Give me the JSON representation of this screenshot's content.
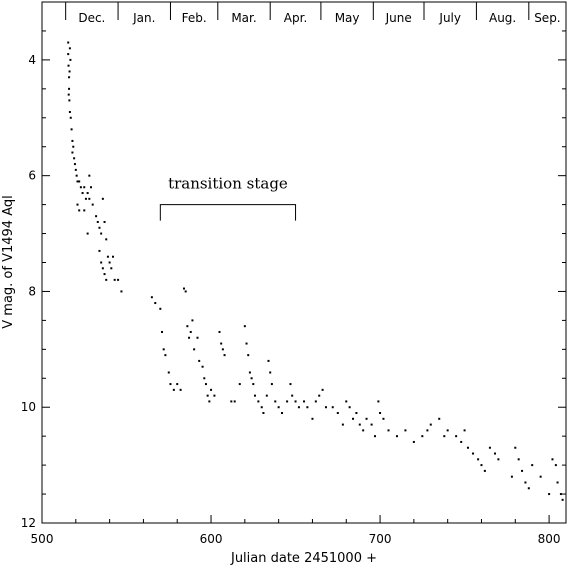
{
  "chart_data": {
    "type": "scatter",
    "title": "",
    "xlabel": "Julian date 2451000 +",
    "ylabel": "V mag. of V1494 Aql",
    "xlim": [
      500,
      810
    ],
    "ylim": [
      12,
      3
    ],
    "y_inverted": true,
    "grid": false,
    "x_ticks": [
      500,
      600,
      700,
      800
    ],
    "y_ticks": [
      4,
      6,
      8,
      10,
      12
    ],
    "months": [
      {
        "label": "Dec.",
        "start": 514,
        "end": 545
      },
      {
        "label": "Jan.",
        "start": 545,
        "end": 576
      },
      {
        "label": "Feb.",
        "start": 576,
        "end": 604
      },
      {
        "label": "Mar.",
        "start": 604,
        "end": 635
      },
      {
        "label": "Apr.",
        "start": 635,
        "end": 665
      },
      {
        "label": "May",
        "start": 665,
        "end": 696
      },
      {
        "label": "June",
        "start": 696,
        "end": 726
      },
      {
        "label": "July",
        "start": 726,
        "end": 757
      },
      {
        "label": "Aug.",
        "start": 757,
        "end": 788
      },
      {
        "label": "Sep.",
        "start": 788,
        "end": 810
      }
    ],
    "annotation": {
      "text": "transition stage",
      "x_start": 570,
      "x_end": 650,
      "y": 6.5
    },
    "series": [
      {
        "points": [
          [
            515.5,
            3.7
          ],
          [
            515.5,
            3.9
          ],
          [
            515.7,
            4.1
          ],
          [
            516,
            4.3
          ],
          [
            516,
            4.5
          ],
          [
            516.2,
            4.7
          ],
          [
            516.5,
            4.9
          ],
          [
            517,
            5.0
          ],
          [
            516.5,
            3.8
          ],
          [
            516.8,
            4.0
          ],
          [
            516.3,
            4.2
          ],
          [
            515.8,
            4.6
          ],
          [
            517.5,
            5.2
          ],
          [
            518,
            5.4
          ],
          [
            518.5,
            5.5
          ],
          [
            518,
            5.6
          ],
          [
            519,
            5.7
          ],
          [
            519.5,
            5.8
          ],
          [
            520,
            5.9
          ],
          [
            520.5,
            6.0
          ],
          [
            521,
            6.1
          ],
          [
            522,
            6.1
          ],
          [
            523,
            6.2
          ],
          [
            524,
            6.3
          ],
          [
            525,
            6.2
          ],
          [
            526,
            6.4
          ],
          [
            527,
            6.3
          ],
          [
            528,
            6.4
          ],
          [
            529,
            6.2
          ],
          [
            530,
            6.5
          ],
          [
            521,
            6.5
          ],
          [
            522,
            6.6
          ],
          [
            525,
            6.6
          ],
          [
            527,
            7.0
          ],
          [
            528,
            6.0
          ],
          [
            532,
            6.7
          ],
          [
            533,
            6.8
          ],
          [
            534,
            6.9
          ],
          [
            535,
            7.0
          ],
          [
            536,
            6.4
          ],
          [
            537,
            6.8
          ],
          [
            538,
            7.1
          ],
          [
            534,
            7.3
          ],
          [
            535,
            7.5
          ],
          [
            536,
            7.6
          ],
          [
            537,
            7.7
          ],
          [
            538,
            7.8
          ],
          [
            539,
            7.4
          ],
          [
            540,
            7.5
          ],
          [
            541,
            7.6
          ],
          [
            542,
            7.4
          ],
          [
            543,
            7.8
          ],
          [
            545,
            7.8
          ],
          [
            547,
            8.0
          ],
          [
            565,
            8.1
          ],
          [
            567,
            8.2
          ],
          [
            570,
            8.3
          ],
          [
            571,
            8.7
          ],
          [
            572,
            9.0
          ],
          [
            573,
            9.1
          ],
          [
            575,
            9.4
          ],
          [
            576,
            9.6
          ],
          [
            578,
            9.7
          ],
          [
            580,
            9.6
          ],
          [
            582,
            9.7
          ],
          [
            584,
            7.95
          ],
          [
            585,
            8.0
          ],
          [
            586,
            8.6
          ],
          [
            587,
            8.8
          ],
          [
            588,
            8.7
          ],
          [
            589,
            8.5
          ],
          [
            590,
            9.0
          ],
          [
            592,
            8.8
          ],
          [
            593,
            9.2
          ],
          [
            595,
            9.3
          ],
          [
            596,
            9.5
          ],
          [
            597,
            9.6
          ],
          [
            598,
            9.8
          ],
          [
            599,
            9.9
          ],
          [
            600,
            9.7
          ],
          [
            602,
            9.8
          ],
          [
            605,
            8.7
          ],
          [
            606,
            8.9
          ],
          [
            607,
            9.0
          ],
          [
            608,
            9.1
          ],
          [
            612,
            9.9
          ],
          [
            614,
            9.9
          ],
          [
            617,
            9.6
          ],
          [
            620,
            8.6
          ],
          [
            621,
            8.9
          ],
          [
            622,
            9.1
          ],
          [
            623,
            9.4
          ],
          [
            624,
            9.5
          ],
          [
            625,
            9.6
          ],
          [
            626,
            9.8
          ],
          [
            628,
            9.9
          ],
          [
            630,
            10.0
          ],
          [
            631,
            10.1
          ],
          [
            633,
            9.8
          ],
          [
            634,
            9.2
          ],
          [
            635,
            9.4
          ],
          [
            636,
            9.6
          ],
          [
            638,
            9.9
          ],
          [
            640,
            10.0
          ],
          [
            642,
            10.1
          ],
          [
            645,
            9.9
          ],
          [
            647,
            9.6
          ],
          [
            648,
            9.8
          ],
          [
            650,
            9.9
          ],
          [
            652,
            10.0
          ],
          [
            655,
            9.9
          ],
          [
            657,
            10.0
          ],
          [
            660,
            10.2
          ],
          [
            662,
            9.9
          ],
          [
            664,
            9.8
          ],
          [
            666,
            9.7
          ],
          [
            668,
            10.0
          ],
          [
            672,
            10.0
          ],
          [
            675,
            10.1
          ],
          [
            678,
            10.3
          ],
          [
            680,
            9.9
          ],
          [
            682,
            10.0
          ],
          [
            684,
            10.2
          ],
          [
            686,
            10.1
          ],
          [
            688,
            10.3
          ],
          [
            690,
            10.4
          ],
          [
            692,
            10.2
          ],
          [
            695,
            10.3
          ],
          [
            697,
            10.5
          ],
          [
            699,
            9.9
          ],
          [
            700,
            10.1
          ],
          [
            702,
            10.2
          ],
          [
            705,
            10.4
          ],
          [
            710,
            10.5
          ],
          [
            715,
            10.4
          ],
          [
            720,
            10.6
          ],
          [
            725,
            10.5
          ],
          [
            728,
            10.4
          ],
          [
            730,
            10.3
          ],
          [
            735,
            10.2
          ],
          [
            738,
            10.5
          ],
          [
            740,
            10.4
          ],
          [
            745,
            10.5
          ],
          [
            748,
            10.6
          ],
          [
            750,
            10.4
          ],
          [
            752,
            10.7
          ],
          [
            755,
            10.8
          ],
          [
            758,
            10.9
          ],
          [
            760,
            11.0
          ],
          [
            762,
            11.1
          ],
          [
            765,
            10.7
          ],
          [
            768,
            10.8
          ],
          [
            770,
            10.9
          ],
          [
            778,
            11.2
          ],
          [
            780,
            10.7
          ],
          [
            782,
            10.9
          ],
          [
            784,
            11.1
          ],
          [
            786,
            11.3
          ],
          [
            788,
            11.4
          ],
          [
            790,
            11.0
          ],
          [
            795,
            11.2
          ],
          [
            800,
            11.5
          ],
          [
            802,
            10.9
          ],
          [
            804,
            11.0
          ],
          [
            805,
            11.3
          ],
          [
            807,
            11.5
          ],
          [
            808,
            11.6
          ]
        ]
      }
    ]
  }
}
